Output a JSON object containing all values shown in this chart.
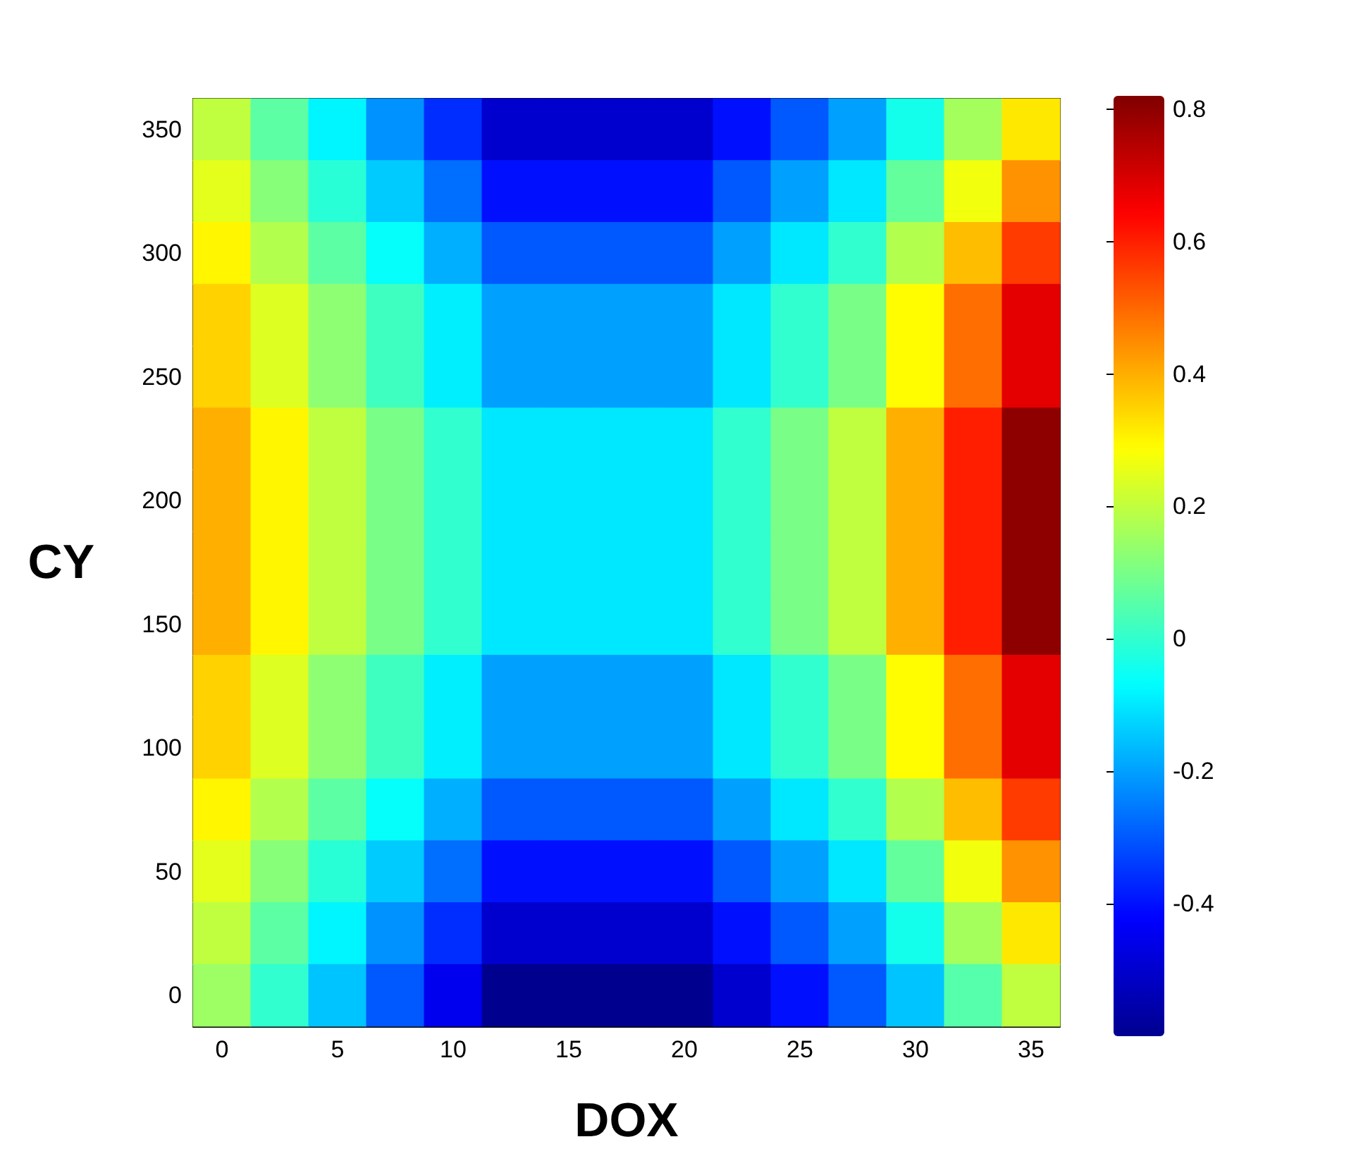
{
  "chart_data": {
    "type": "heatmap",
    "xlabel": "DOX",
    "ylabel": "CY",
    "categories": [
      "0",
      null,
      "5",
      null,
      "10",
      null,
      "15",
      null,
      "20",
      null,
      "25",
      null,
      "30",
      null,
      "35"
    ],
    "y_categories": [
      "350",
      null,
      "300",
      null,
      "250",
      null,
      "200",
      null,
      "150",
      null,
      "100",
      null,
      "50",
      null,
      "0"
    ],
    "cells": [
      [
        0.2,
        0.06,
        -0.08,
        -0.22,
        -0.36,
        -0.5,
        -0.5,
        -0.5,
        -0.5,
        -0.4,
        -0.3,
        -0.2,
        -0.04,
        0.16,
        0.32
      ],
      [
        0.25,
        0.12,
        -0.01,
        -0.14,
        -0.27,
        -0.4,
        -0.4,
        -0.4,
        -0.4,
        -0.3,
        -0.2,
        -0.1,
        0.07,
        0.27,
        0.44
      ],
      [
        0.3,
        0.18,
        0.06,
        -0.06,
        -0.18,
        -0.3,
        -0.3,
        -0.3,
        -0.3,
        -0.2,
        -0.1,
        0,
        0.18,
        0.38,
        0.56
      ],
      [
        0.35,
        0.24,
        0.13,
        0.02,
        -0.09,
        -0.2,
        -0.2,
        -0.2,
        -0.2,
        -0.1,
        0,
        0.1,
        0.29,
        0.49,
        0.68
      ],
      [
        0.35,
        0.24,
        0.13,
        0.02,
        -0.09,
        -0.2,
        -0.2,
        -0.2,
        -0.2,
        -0.1,
        0,
        0.1,
        0.29,
        0.49,
        0.68
      ],
      [
        0.4,
        0.3,
        0.2,
        0.1,
        0,
        -0.1,
        -0.1,
        -0.1,
        -0.1,
        0,
        0.1,
        0.2,
        0.4,
        0.6,
        0.8
      ],
      [
        0.4,
        0.3,
        0.2,
        0.1,
        0,
        -0.1,
        -0.1,
        -0.1,
        -0.1,
        0,
        0.1,
        0.2,
        0.4,
        0.6,
        0.8
      ],
      [
        0.4,
        0.3,
        0.2,
        0.1,
        0,
        -0.1,
        -0.1,
        -0.1,
        -0.1,
        0,
        0.1,
        0.2,
        0.4,
        0.6,
        0.8
      ],
      [
        0.4,
        0.3,
        0.2,
        0.1,
        0,
        -0.1,
        -0.1,
        -0.1,
        -0.1,
        0,
        0.1,
        0.2,
        0.4,
        0.6,
        0.8
      ],
      [
        0.35,
        0.24,
        0.13,
        0.02,
        -0.09,
        -0.2,
        -0.2,
        -0.2,
        -0.2,
        -0.1,
        0,
        0.1,
        0.29,
        0.49,
        0.68
      ],
      [
        0.35,
        0.24,
        0.13,
        0.02,
        -0.09,
        -0.2,
        -0.2,
        -0.2,
        -0.2,
        -0.1,
        0,
        0.1,
        0.29,
        0.49,
        0.68
      ],
      [
        0.3,
        0.18,
        0.06,
        -0.06,
        -0.18,
        -0.3,
        -0.3,
        -0.3,
        -0.3,
        -0.2,
        -0.1,
        0,
        0.18,
        0.38,
        0.56
      ],
      [
        0.25,
        0.12,
        -0.01,
        -0.14,
        -0.27,
        -0.4,
        -0.4,
        -0.4,
        -0.4,
        -0.3,
        -0.2,
        -0.1,
        0.07,
        0.27,
        0.44
      ],
      [
        0.2,
        0.06,
        -0.08,
        -0.22,
        -0.36,
        -0.5,
        -0.5,
        -0.5,
        -0.5,
        -0.4,
        -0.3,
        -0.2,
        -0.04,
        0.16,
        0.32
      ],
      [
        0.15,
        0,
        -0.15,
        -0.3,
        -0.45,
        -0.6,
        -0.6,
        -0.6,
        -0.6,
        -0.5,
        -0.4,
        -0.3,
        -0.15,
        0.05,
        0.2
      ]
    ],
    "clim": [
      -0.6,
      0.82
    ],
    "cticks": [
      -0.4,
      -0.2,
      0,
      0.2,
      0.4,
      0.6,
      0.8
    ]
  }
}
